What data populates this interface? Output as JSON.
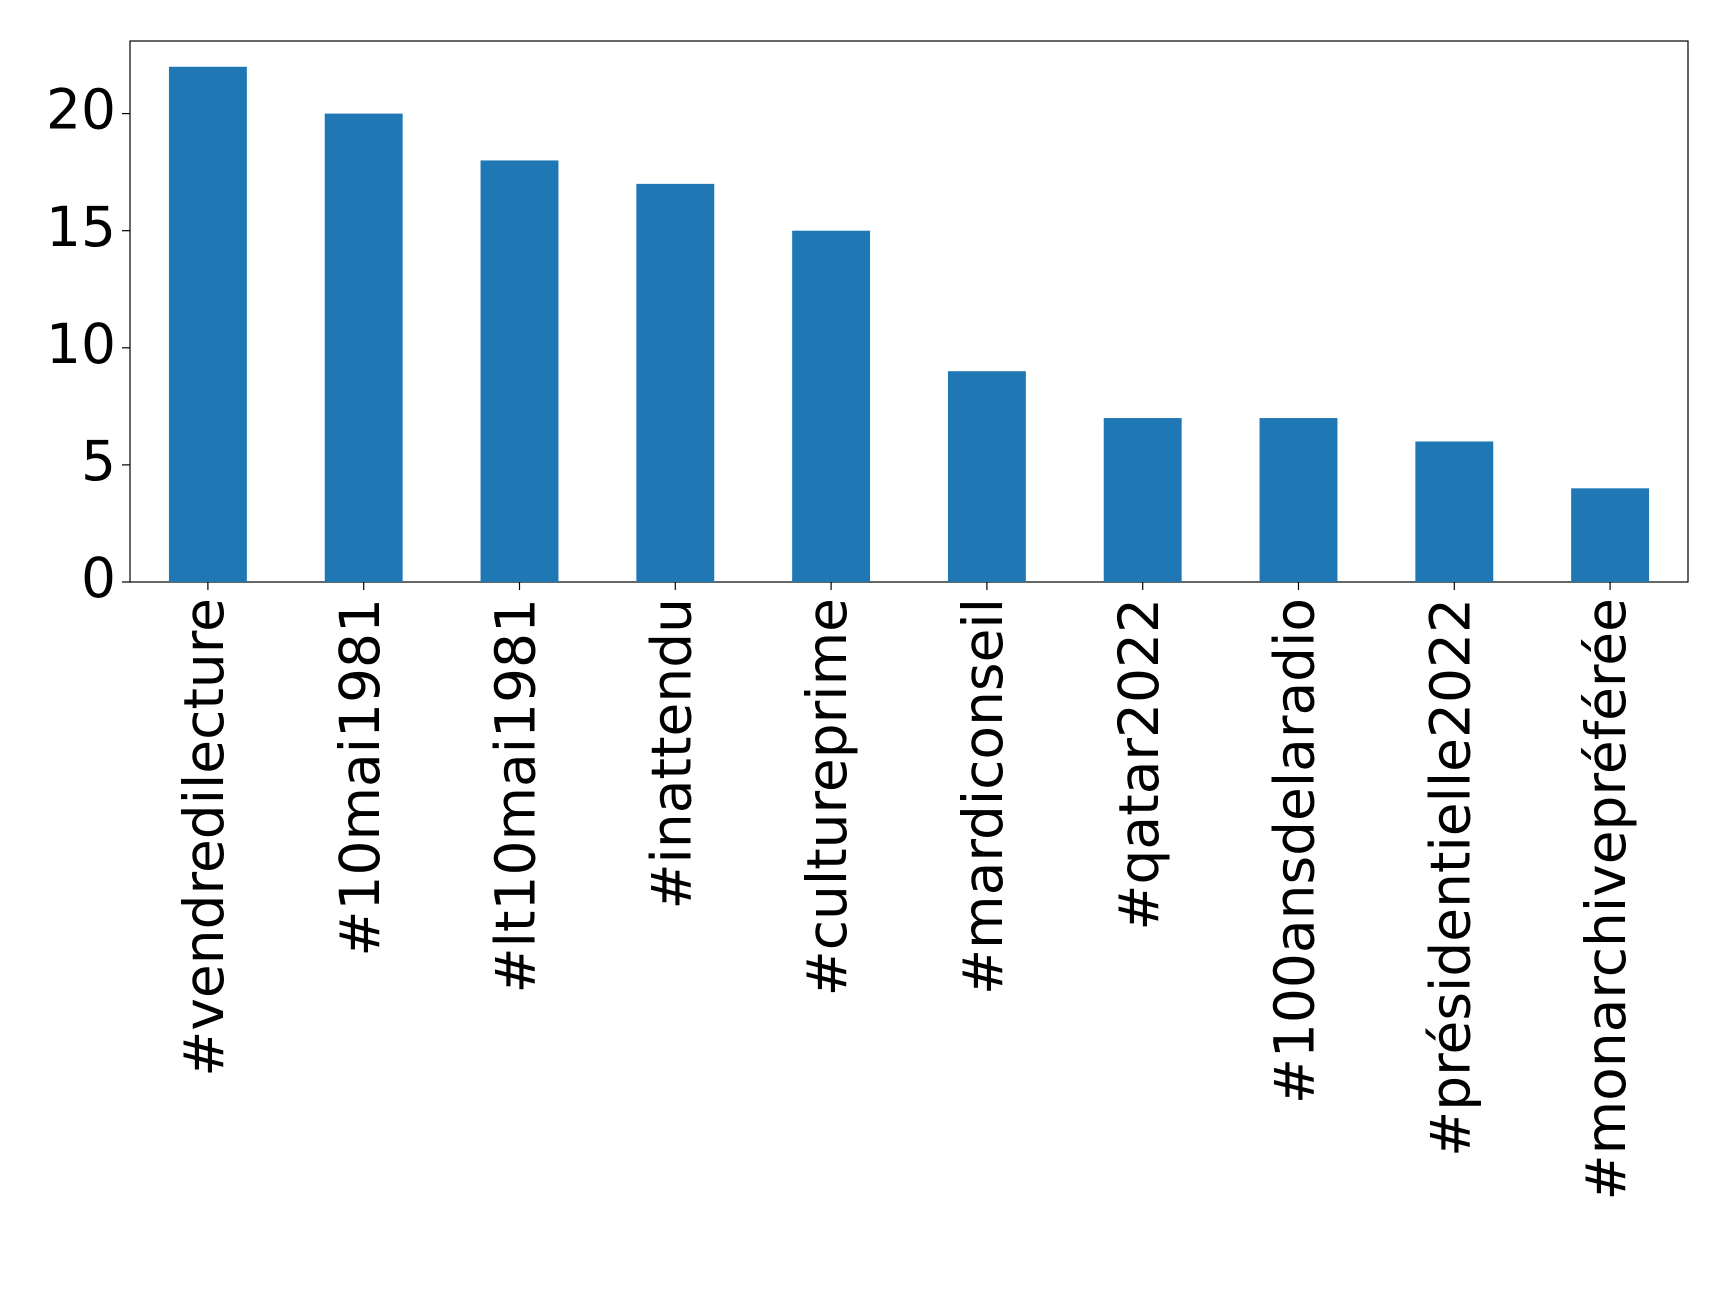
{
  "chart_data": {
    "type": "bar",
    "categories": [
      "#vendredilecture",
      "#10mai1981",
      "#lt10mai1981",
      "#inattendu",
      "#cultureprime",
      "#mardiconseil",
      "#qatar2022",
      "#100ansdelaradio",
      "#présidentielle2022",
      "#monarchivepréférée"
    ],
    "values": [
      22,
      20,
      18,
      17,
      15,
      9,
      7,
      7,
      6,
      4
    ],
    "color": "#1f77b4",
    "ylim": [
      0,
      23.1
    ],
    "yticks": [
      0,
      5,
      10,
      15,
      20
    ],
    "grid": false
  }
}
